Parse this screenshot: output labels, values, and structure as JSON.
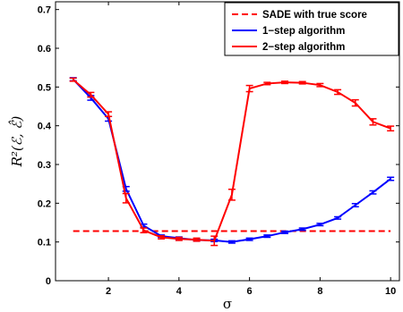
{
  "chart_data": {
    "type": "line",
    "xlabel": "σ",
    "ylabel": "R²(ℰ, ℰ̂)",
    "xlim": [
      0.5,
      10.25
    ],
    "ylim": [
      0,
      0.72
    ],
    "xticks": [
      2,
      4,
      6,
      8,
      10
    ],
    "yticks": [
      0,
      0.1,
      0.2,
      0.3,
      0.4,
      0.5,
      0.6,
      0.7
    ],
    "ytick_labels": [
      "0",
      "0.1",
      "0.2",
      "0.3",
      "0.4",
      "0.5",
      "0.6",
      "0.7"
    ],
    "grid": false,
    "legend_position": "top-right",
    "series": [
      {
        "name": "SADE with true score",
        "color": "#ff0000",
        "style": "dashed",
        "x": [
          1,
          10
        ],
        "y": [
          0.128,
          0.128
        ]
      },
      {
        "name": "1−step algorithm",
        "color": "#0000ff",
        "style": "solid",
        "x": [
          1,
          1.5,
          2,
          2.5,
          3,
          3.5,
          4,
          4.5,
          5,
          5.5,
          6,
          6.5,
          7,
          7.5,
          8,
          8.5,
          9,
          9.5,
          10
        ],
        "y": [
          0.52,
          0.472,
          0.418,
          0.237,
          0.142,
          0.115,
          0.11,
          0.105,
          0.104,
          0.1,
          0.107,
          0.115,
          0.125,
          0.133,
          0.145,
          0.162,
          0.195,
          0.228,
          0.263
        ],
        "err": [
          0.004,
          0.006,
          0.006,
          0.006,
          0.004,
          0.003,
          0.003,
          0.003,
          0.003,
          0.003,
          0.003,
          0.003,
          0.003,
          0.003,
          0.003,
          0.003,
          0.004,
          0.004,
          0.004
        ]
      },
      {
        "name": "2−step algorithm",
        "color": "#ff0000",
        "style": "solid",
        "x": [
          1,
          1.5,
          2,
          2.5,
          3,
          3.5,
          4,
          4.5,
          5,
          5.5,
          6,
          6.5,
          7,
          7.5,
          8,
          8.5,
          9,
          9.5,
          10
        ],
        "y": [
          0.519,
          0.48,
          0.43,
          0.213,
          0.13,
          0.112,
          0.108,
          0.106,
          0.103,
          0.222,
          0.496,
          0.509,
          0.512,
          0.511,
          0.505,
          0.487,
          0.459,
          0.41,
          0.393
        ],
        "err": [
          0.004,
          0.006,
          0.006,
          0.012,
          0.006,
          0.004,
          0.004,
          0.004,
          0.012,
          0.014,
          0.008,
          0.003,
          0.003,
          0.003,
          0.004,
          0.006,
          0.008,
          0.008,
          0.006
        ]
      }
    ]
  }
}
